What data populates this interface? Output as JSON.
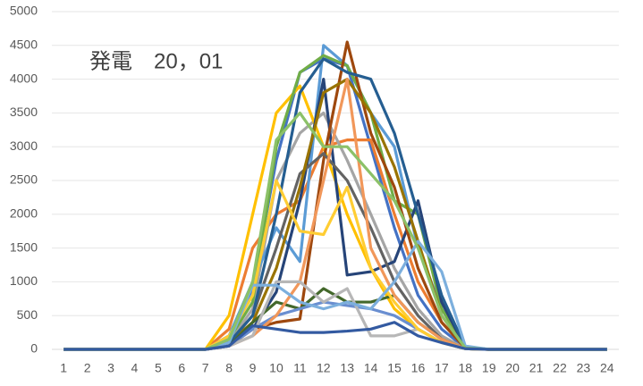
{
  "chart_data": {
    "type": "line",
    "annotation": "発電　20，01",
    "categories": [
      "1",
      "2",
      "3",
      "4",
      "5",
      "6",
      "7",
      "8",
      "9",
      "10",
      "11",
      "12",
      "13",
      "14",
      "15",
      "16",
      "17",
      "18",
      "19",
      "20",
      "21",
      "22",
      "23",
      "24"
    ],
    "ylim": [
      0,
      5000
    ],
    "yticks": [
      0,
      500,
      1000,
      1500,
      2000,
      2500,
      3000,
      3500,
      4000,
      4500,
      5000
    ],
    "grid": true,
    "series": [
      {
        "color": "#4472c4",
        "values": [
          0,
          0,
          0,
          0,
          0,
          0,
          0,
          200,
          900,
          2800,
          4100,
          4300,
          4200,
          3000,
          1800,
          800,
          300,
          20,
          0,
          0,
          0,
          0,
          0,
          0
        ]
      },
      {
        "color": "#ed7d31",
        "values": [
          0,
          0,
          0,
          0,
          0,
          0,
          0,
          300,
          1500,
          2000,
          2200,
          3000,
          3100,
          3100,
          2000,
          1000,
          400,
          30,
          0,
          0,
          0,
          0,
          0,
          0
        ]
      },
      {
        "color": "#a5a5a5",
        "values": [
          0,
          0,
          0,
          0,
          0,
          0,
          0,
          100,
          600,
          2500,
          3200,
          3500,
          2800,
          2000,
          1200,
          600,
          200,
          10,
          0,
          0,
          0,
          0,
          0,
          0
        ]
      },
      {
        "color": "#ffc000",
        "values": [
          0,
          0,
          0,
          0,
          0,
          0,
          0,
          500,
          2000,
          3500,
          3900,
          3000,
          2000,
          1200,
          600,
          300,
          100,
          10,
          0,
          0,
          0,
          0,
          0,
          0
        ]
      },
      {
        "color": "#5b9bd5",
        "values": [
          0,
          0,
          0,
          0,
          0,
          0,
          0,
          200,
          1000,
          1800,
          1300,
          4500,
          4200,
          3500,
          3000,
          1500,
          600,
          30,
          0,
          0,
          0,
          0,
          0,
          0
        ]
      },
      {
        "color": "#70ad47",
        "values": [
          0,
          0,
          0,
          0,
          0,
          0,
          0,
          150,
          700,
          3000,
          4100,
          4350,
          4200,
          3500,
          2200,
          2000,
          600,
          30,
          0,
          0,
          0,
          0,
          0,
          0
        ]
      },
      {
        "color": "#264478",
        "values": [
          0,
          0,
          0,
          0,
          0,
          0,
          0,
          50,
          300,
          850,
          2200,
          4000,
          1100,
          1150,
          1300,
          2200,
          700,
          30,
          0,
          0,
          0,
          0,
          0,
          0
        ]
      },
      {
        "color": "#9e480e",
        "values": [
          0,
          0,
          0,
          0,
          0,
          0,
          0,
          50,
          300,
          400,
          450,
          2800,
          4550,
          3200,
          2400,
          1200,
          400,
          20,
          0,
          0,
          0,
          0,
          0,
          0
        ]
      },
      {
        "color": "#636363",
        "values": [
          0,
          0,
          0,
          0,
          0,
          0,
          0,
          100,
          500,
          1500,
          2600,
          2900,
          2500,
          1800,
          1000,
          500,
          150,
          10,
          0,
          0,
          0,
          0,
          0,
          0
        ]
      },
      {
        "color": "#997300",
        "values": [
          0,
          0,
          0,
          0,
          0,
          0,
          0,
          100,
          400,
          1200,
          2400,
          3800,
          4000,
          3500,
          2700,
          1600,
          500,
          20,
          0,
          0,
          0,
          0,
          0,
          0
        ]
      },
      {
        "color": "#255e91",
        "values": [
          0,
          0,
          0,
          0,
          0,
          0,
          0,
          100,
          500,
          2000,
          3800,
          4300,
          4100,
          4000,
          3200,
          2000,
          800,
          30,
          0,
          0,
          0,
          0,
          0,
          0
        ]
      },
      {
        "color": "#43682b",
        "values": [
          0,
          0,
          0,
          0,
          0,
          0,
          0,
          50,
          400,
          700,
          600,
          900,
          700,
          700,
          800,
          400,
          150,
          10,
          0,
          0,
          0,
          0,
          0,
          0
        ]
      },
      {
        "color": "#698ed0",
        "values": [
          0,
          0,
          0,
          0,
          0,
          0,
          0,
          50,
          300,
          500,
          600,
          700,
          650,
          600,
          500,
          300,
          100,
          10,
          0,
          0,
          0,
          0,
          0,
          0
        ]
      },
      {
        "color": "#f1975a",
        "values": [
          0,
          0,
          0,
          0,
          0,
          0,
          0,
          50,
          200,
          500,
          1000,
          2500,
          4000,
          1500,
          800,
          400,
          150,
          10,
          0,
          0,
          0,
          0,
          0,
          0
        ]
      },
      {
        "color": "#b7b7b7",
        "values": [
          0,
          0,
          0,
          0,
          0,
          0,
          0,
          50,
          200,
          1000,
          1000,
          700,
          900,
          200,
          200,
          300,
          100,
          10,
          0,
          0,
          0,
          0,
          0,
          0
        ]
      },
      {
        "color": "#ffcd33",
        "values": [
          0,
          0,
          0,
          0,
          0,
          0,
          0,
          200,
          800,
          2500,
          1750,
          1700,
          2400,
          1200,
          700,
          300,
          100,
          10,
          0,
          0,
          0,
          0,
          0,
          0
        ]
      },
      {
        "color": "#7cafdd",
        "values": [
          0,
          0,
          0,
          0,
          0,
          0,
          0,
          100,
          950,
          950,
          700,
          600,
          700,
          600,
          1000,
          1600,
          1150,
          50,
          0,
          0,
          0,
          0,
          0,
          0
        ]
      },
      {
        "color": "#8cc168",
        "values": [
          0,
          0,
          0,
          0,
          0,
          0,
          0,
          150,
          1000,
          3100,
          3500,
          3000,
          3000,
          2600,
          2200,
          1500,
          500,
          20,
          0,
          0,
          0,
          0,
          0,
          0
        ]
      },
      {
        "color": "#335aa1",
        "values": [
          0,
          0,
          0,
          0,
          0,
          0,
          0,
          50,
          350,
          300,
          250,
          250,
          270,
          300,
          400,
          200,
          100,
          10,
          0,
          0,
          0,
          0,
          0,
          0
        ]
      }
    ]
  }
}
